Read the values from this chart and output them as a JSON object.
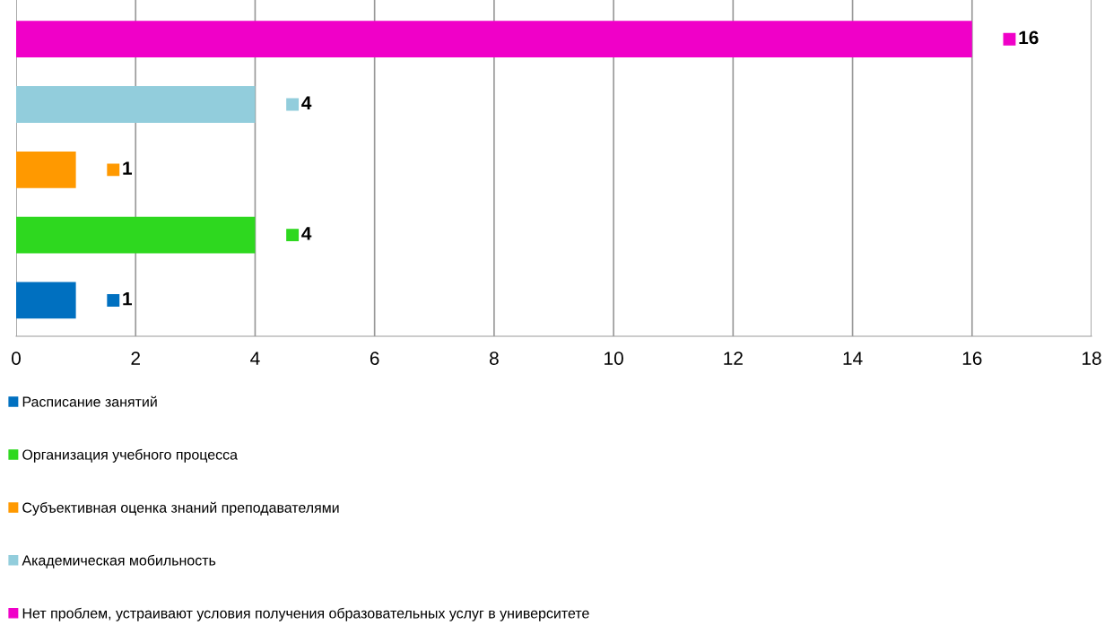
{
  "chart_data": {
    "type": "bar",
    "orientation": "horizontal",
    "categories": [
      null,
      null,
      null,
      null,
      null
    ],
    "series": [
      {
        "name": "Расписание занятий",
        "color": "#0070c0",
        "values": [
          null,
          null,
          null,
          null,
          1
        ]
      },
      {
        "name": "Организация учебного процесса",
        "color": "#2ed81f",
        "values": [
          null,
          null,
          null,
          4,
          null
        ]
      },
      {
        "name": "Субъективная оценка знаний преподавателями",
        "color": "#ff9900",
        "values": [
          null,
          null,
          1,
          null,
          null
        ]
      },
      {
        "name": "Академическая мобильность",
        "color": "#92cddc",
        "values": [
          null,
          4,
          null,
          null,
          null
        ]
      },
      {
        "name": "Нет проблем, устраивают условия получения образовательных услуг в университете",
        "color": "#f000c8",
        "values": [
          16,
          null,
          null,
          null,
          null
        ]
      }
    ],
    "xlim": [
      0,
      18
    ],
    "xticks": [
      0,
      2,
      4,
      6,
      8,
      10,
      12,
      14,
      16,
      18
    ],
    "grid": "x",
    "legend": "bottom",
    "data_labels": true
  }
}
